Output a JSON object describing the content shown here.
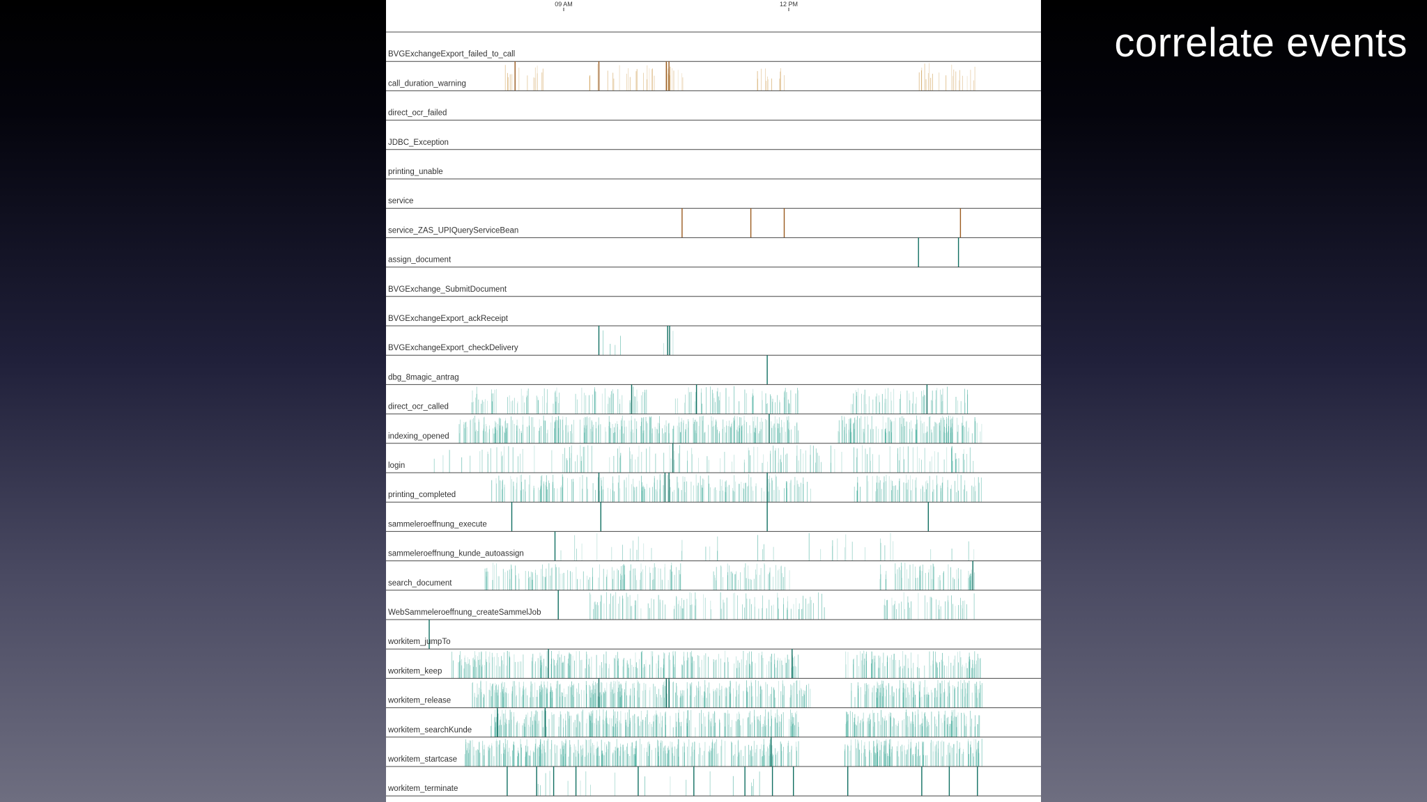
{
  "slide": {
    "title": "correlate events"
  },
  "colors": {
    "warning": "#c8913c",
    "warning_strong": "#9a5a1e",
    "event": "#3aa896",
    "event_strong": "#0f6e60",
    "separator": "#444444"
  },
  "chart_data": {
    "type": "timeline",
    "title": "",
    "xlabel": "",
    "ylabel": "",
    "x_ticks": [
      "09 AM",
      "12 PM"
    ],
    "grid": false,
    "legend": "none",
    "rows": [
      {
        "name": "BVGExchangeExport_failed_to_call",
        "kind": "warning",
        "density": 0,
        "major": []
      },
      {
        "name": "call_duration_warning",
        "kind": "warning",
        "density": 0.22,
        "major": [
          0.197,
          0.325,
          0.428,
          0.432
        ],
        "clusters": [
          [
            0.17,
            0.24
          ],
          [
            0.31,
            0.46
          ],
          [
            0.56,
            0.62
          ],
          [
            0.79,
            0.9
          ]
        ]
      },
      {
        "name": "direct_ocr_failed",
        "kind": "warning",
        "density": 0,
        "major": []
      },
      {
        "name": "JDBC_Exception",
        "kind": "warning",
        "density": 0,
        "major": []
      },
      {
        "name": "printing_unable",
        "kind": "warning",
        "density": 0,
        "major": []
      },
      {
        "name": "service",
        "kind": "warning",
        "density": 0,
        "major": []
      },
      {
        "name": "service_ZAS_UPIQueryServiceBean",
        "kind": "warning",
        "density": 0,
        "major": [
          0.452,
          0.557,
          0.608,
          0.877
        ]
      },
      {
        "name": "assign_document",
        "kind": "event",
        "density": 0.02,
        "major": [
          0.813,
          0.874
        ],
        "clusters": [
          [
            0.8,
            0.82
          ]
        ]
      },
      {
        "name": "BVGExchange_SubmitDocument",
        "kind": "event",
        "density": 0,
        "major": []
      },
      {
        "name": "BVGExchangeExport_ackReceipt",
        "kind": "event",
        "density": 0,
        "major": []
      },
      {
        "name": "BVGExchangeExport_checkDelivery",
        "kind": "event",
        "density": 0.1,
        "major": [
          0.325,
          0.43,
          0.433
        ],
        "clusters": [
          [
            0.32,
            0.36
          ],
          [
            0.42,
            0.44
          ]
        ]
      },
      {
        "name": "dbg_8magic_antrag",
        "kind": "event",
        "density": 0,
        "major": [
          0.582
        ]
      },
      {
        "name": "direct_ocr_called",
        "kind": "event",
        "density": 0.35,
        "major": [
          0.375,
          0.474,
          0.826
        ],
        "clusters": [
          [
            0.13,
            0.4
          ],
          [
            0.44,
            0.63
          ],
          [
            0.71,
            0.9
          ]
        ]
      },
      {
        "name": "indexing_opened",
        "kind": "event",
        "density": 0.75,
        "major": [
          0.585
        ],
        "clusters": [
          [
            0.11,
            0.63
          ],
          [
            0.69,
            0.91
          ]
        ]
      },
      {
        "name": "login",
        "kind": "event",
        "density": 0.22,
        "major": [
          0.438
        ],
        "clusters": [
          [
            0.07,
            0.9
          ]
        ]
      },
      {
        "name": "printing_completed",
        "kind": "event",
        "density": 0.5,
        "major": [
          0.325,
          0.426,
          0.432,
          0.582
        ],
        "clusters": [
          [
            0.16,
            0.65
          ],
          [
            0.71,
            0.91
          ]
        ]
      },
      {
        "name": "sammeleroeffnung_execute",
        "kind": "event",
        "density": 0,
        "major": [
          0.192,
          0.328,
          0.582,
          0.828
        ]
      },
      {
        "name": "sammeleroeffnung_kunde_autoassign",
        "kind": "event",
        "density": 0.07,
        "major": [
          0.258
        ],
        "clusters": [
          [
            0.25,
            0.9
          ]
        ]
      },
      {
        "name": "search_document",
        "kind": "event",
        "density": 0.45,
        "major": [
          0.896
        ],
        "clusters": [
          [
            0.15,
            0.45
          ],
          [
            0.5,
            0.62
          ],
          [
            0.75,
            0.9
          ]
        ]
      },
      {
        "name": "WebSammeleroeffnung_createSammelJob",
        "kind": "event",
        "density": 0.35,
        "major": [
          0.263
        ],
        "clusters": [
          [
            0.31,
            0.67
          ],
          [
            0.76,
            0.9
          ]
        ]
      },
      {
        "name": "workitem_jumpTo",
        "kind": "event",
        "density": 0.01,
        "major": [
          0.066
        ]
      },
      {
        "name": "workitem_keep",
        "kind": "event",
        "density": 0.6,
        "major": [
          0.248,
          0.62
        ],
        "clusters": [
          [
            0.1,
            0.63
          ],
          [
            0.7,
            0.91
          ]
        ]
      },
      {
        "name": "workitem_release",
        "kind": "event",
        "density": 0.8,
        "major": [
          0.325,
          0.428,
          0.432
        ],
        "clusters": [
          [
            0.13,
            0.65
          ],
          [
            0.71,
            0.91
          ]
        ]
      },
      {
        "name": "workitem_searchKunde",
        "kind": "event",
        "density": 0.8,
        "major": [
          0.17,
          0.243
        ],
        "clusters": [
          [
            0.16,
            0.63
          ],
          [
            0.7,
            0.91
          ]
        ]
      },
      {
        "name": "workitem_startcase",
        "kind": "event",
        "density": 0.85,
        "major": [
          0.588
        ],
        "clusters": [
          [
            0.12,
            0.63
          ],
          [
            0.7,
            0.91
          ]
        ]
      },
      {
        "name": "workitem_terminate",
        "kind": "event",
        "density": 0.05,
        "major": [
          0.185,
          0.23,
          0.256,
          0.29,
          0.385,
          0.47,
          0.548,
          0.59,
          0.622,
          0.705,
          0.818,
          0.86,
          0.903
        ],
        "clusters": [
          [
            0.23,
            0.62
          ]
        ]
      }
    ]
  }
}
